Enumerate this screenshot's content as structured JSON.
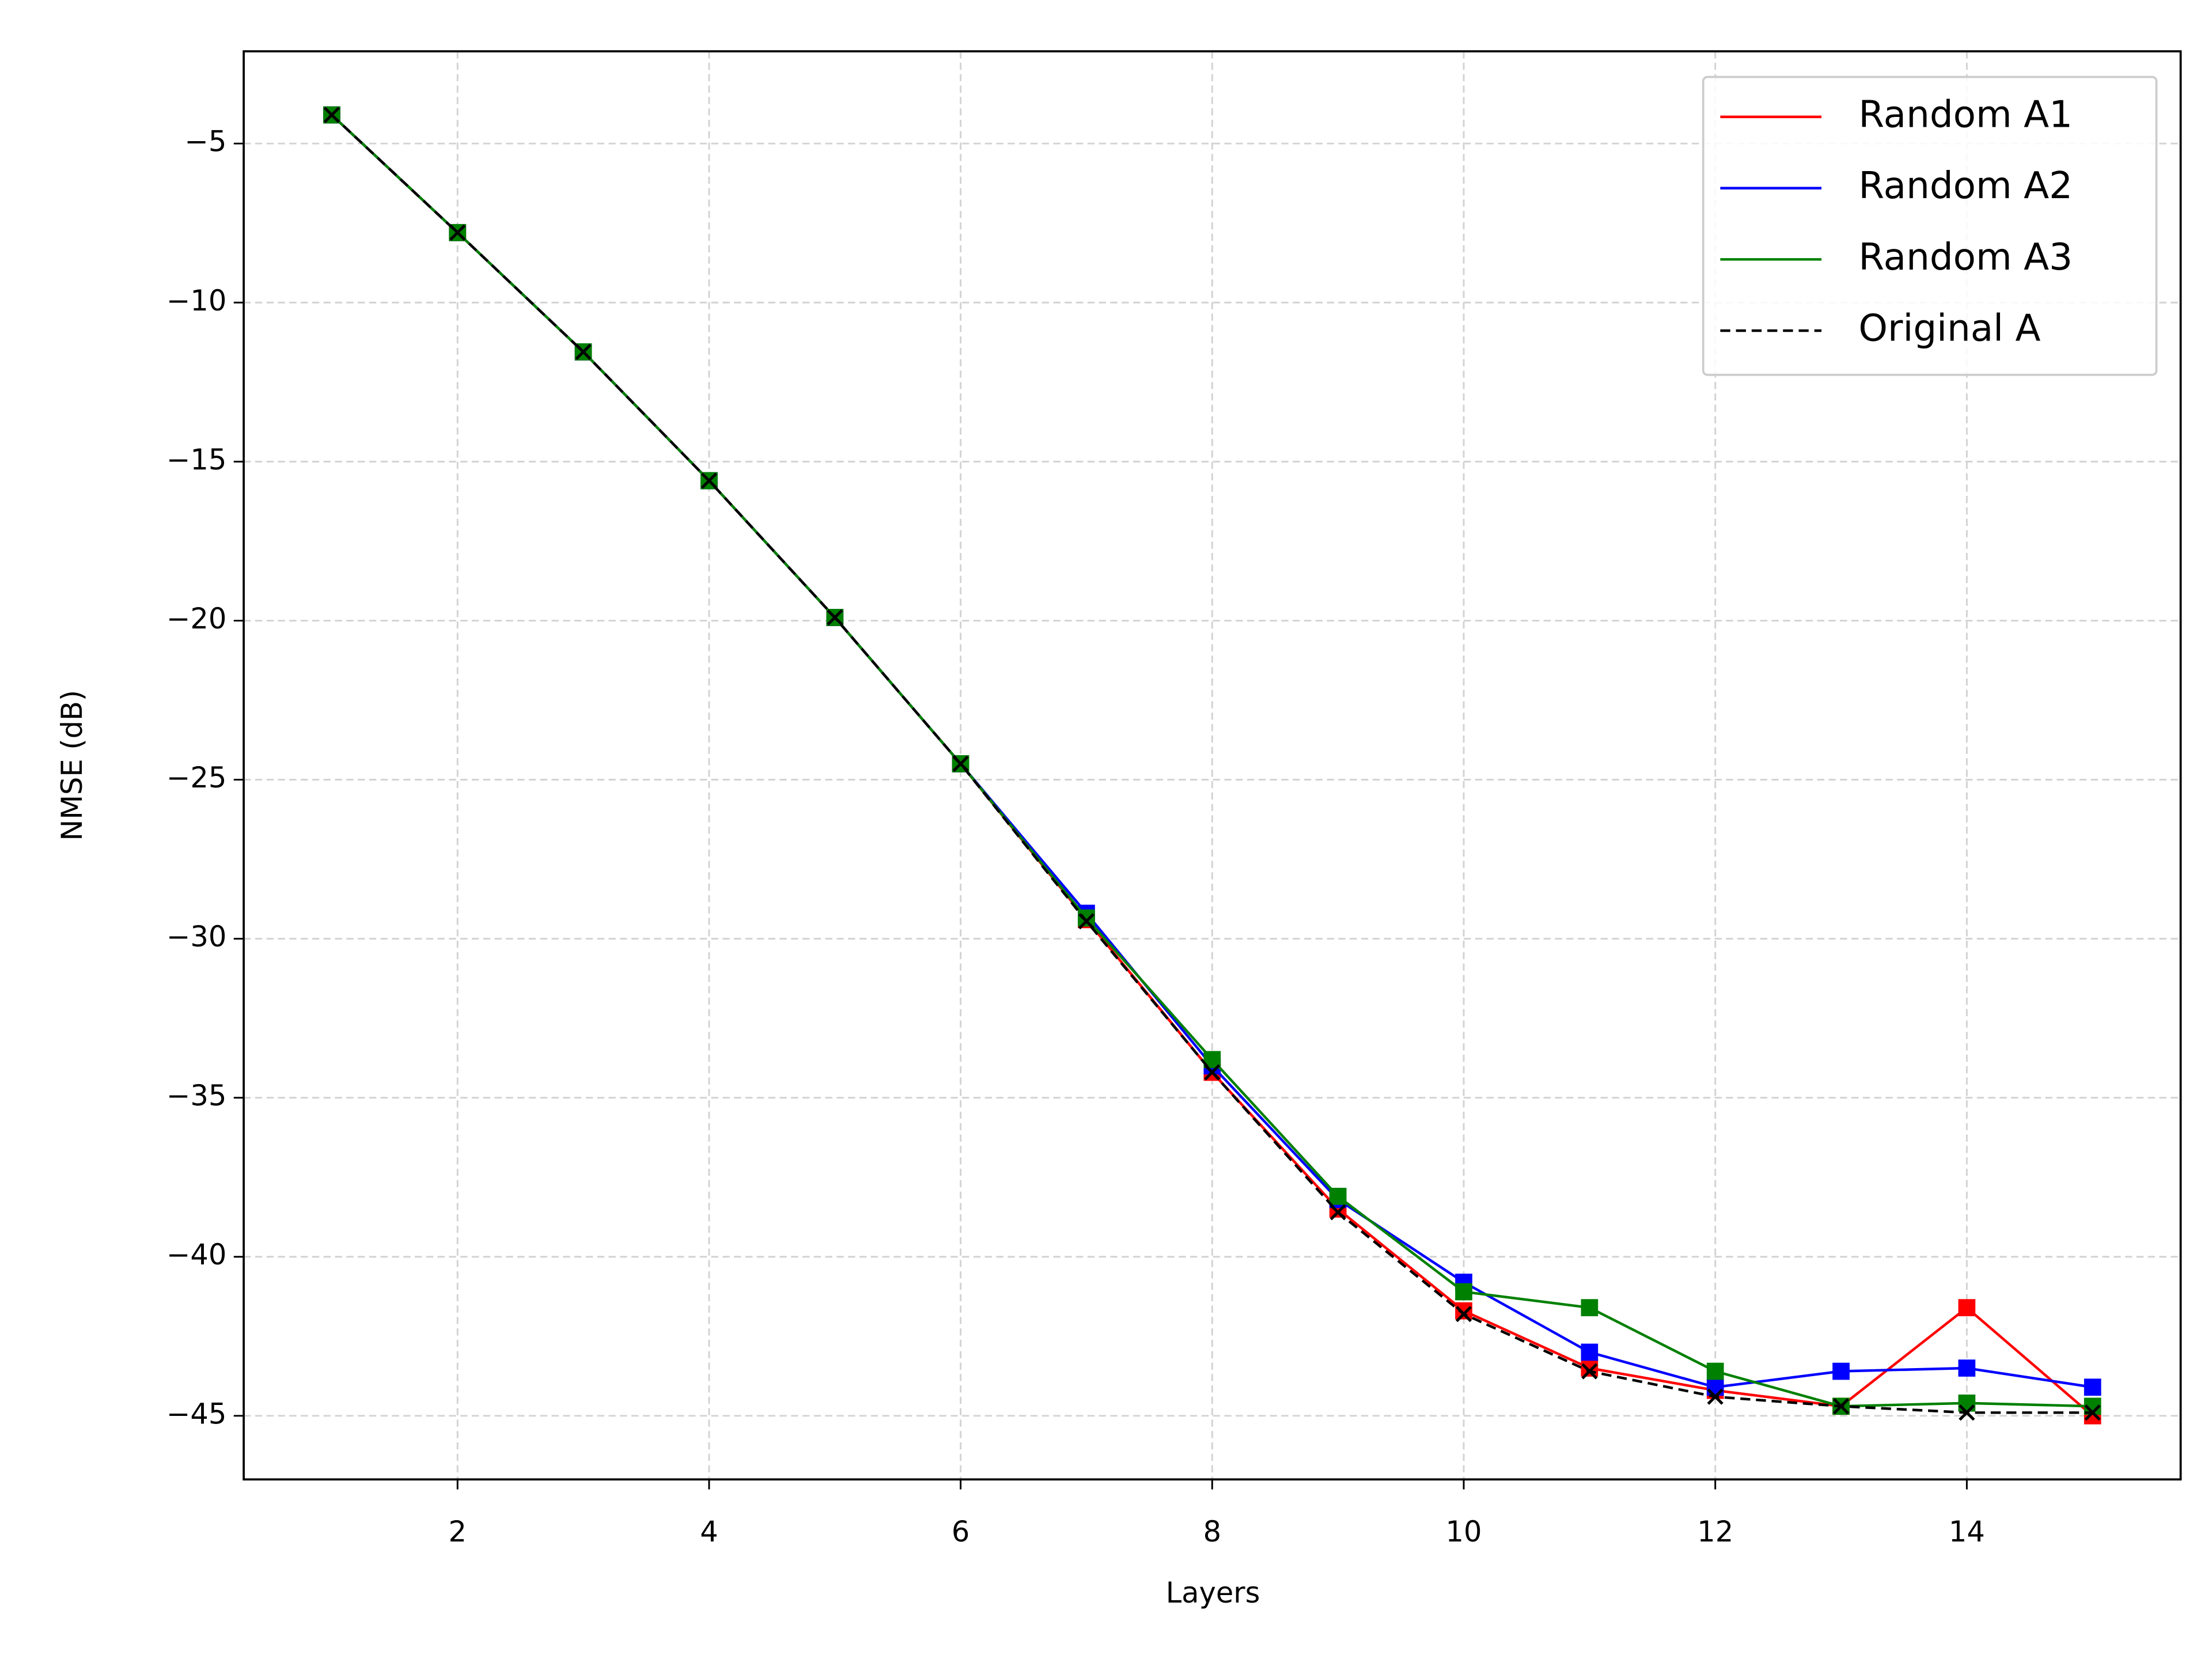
{
  "chart_data": {
    "type": "line",
    "xlabel": "Layers",
    "ylabel": "NMSE (dB)",
    "x": [
      1,
      2,
      3,
      4,
      5,
      6,
      7,
      8,
      9,
      10,
      11,
      12,
      13,
      14,
      15
    ],
    "series": [
      {
        "name": "Random A1",
        "color": "#ff0000",
        "marker": "s",
        "linestyle": "-",
        "values": [
          -4.1,
          -7.8,
          -11.55,
          -15.6,
          -19.9,
          -24.5,
          -29.4,
          -34.2,
          -38.5,
          -41.7,
          -43.5,
          -44.2,
          -44.7,
          -41.6,
          -45.0
        ]
      },
      {
        "name": "Random A2",
        "color": "#0000ff",
        "marker": "s",
        "linestyle": "-",
        "values": [
          -4.1,
          -7.8,
          -11.55,
          -15.6,
          -19.9,
          -24.5,
          -29.2,
          -34.0,
          -38.2,
          -40.8,
          -43.0,
          -44.1,
          -43.6,
          -43.5,
          -44.1
        ]
      },
      {
        "name": "Random A3",
        "color": "#008000",
        "marker": "s",
        "linestyle": "-",
        "values": [
          -4.1,
          -7.8,
          -11.55,
          -15.6,
          -19.9,
          -24.5,
          -29.35,
          -33.8,
          -38.1,
          -41.1,
          -41.6,
          -43.6,
          -44.7,
          -44.6,
          -44.7
        ]
      },
      {
        "name": "Original A",
        "color": "#000000",
        "marker": "x",
        "linestyle": "--",
        "values": [
          -4.1,
          -7.8,
          -11.55,
          -15.6,
          -19.9,
          -24.5,
          -29.45,
          -34.2,
          -38.6,
          -41.8,
          -43.6,
          -44.4,
          -44.7,
          -44.9,
          -44.9
        ]
      }
    ],
    "xlim": [
      0.3,
      15.7
    ],
    "xticks": [
      2,
      4,
      6,
      8,
      10,
      12,
      14
    ],
    "ylim": [
      -47.0,
      -2.1
    ],
    "yticks": [
      {
        "value": -45,
        "label": "−45"
      },
      {
        "value": -40,
        "label": "−40"
      },
      {
        "value": -35,
        "label": "−35"
      },
      {
        "value": -30,
        "label": "−30"
      },
      {
        "value": -25,
        "label": "−25"
      },
      {
        "value": -20,
        "label": "−20"
      },
      {
        "value": -15,
        "label": "−15"
      },
      {
        "value": -10,
        "label": "−10"
      },
      {
        "value": -5,
        "label": "−5"
      }
    ],
    "grid": true,
    "legend": "upper right"
  }
}
